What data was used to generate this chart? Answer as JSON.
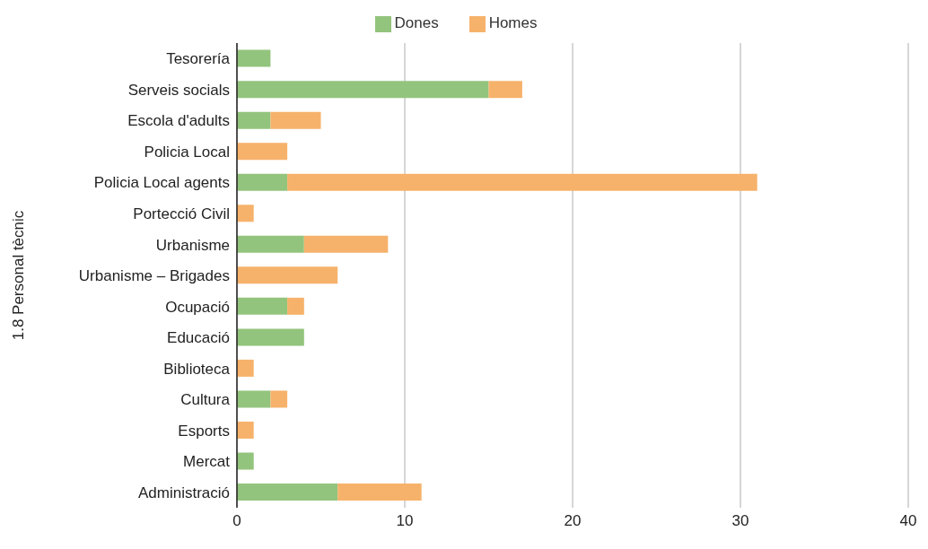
{
  "chart_data": {
    "type": "bar",
    "orientation": "horizontal",
    "stacked": true,
    "ylabel": "1.8 Personal tècnic",
    "categories": [
      "Tesorería",
      "Serveis socials",
      "Escola d'adults",
      "Policia Local",
      "Policia Local agents",
      "Portecció Civil",
      "Urbanisme",
      "Urbanisme – Brigades",
      "Ocupació",
      "Educació",
      "Biblioteca",
      "Cultura",
      "Esports",
      "Mercat",
      "Administració"
    ],
    "series": [
      {
        "name": "Dones",
        "color": "#93c47d",
        "values": [
          2,
          15,
          2,
          0,
          3,
          0,
          4,
          0,
          3,
          4,
          0,
          2,
          0,
          1,
          6
        ]
      },
      {
        "name": "Homes",
        "color": "#f6b26b",
        "values": [
          0,
          2,
          3,
          3,
          28,
          1,
          5,
          6,
          1,
          0,
          1,
          1,
          1,
          0,
          5
        ]
      }
    ],
    "xlim": [
      0,
      40
    ],
    "xticks": [
      0,
      10,
      20,
      30,
      40
    ],
    "grid": "x",
    "legend": "top"
  }
}
